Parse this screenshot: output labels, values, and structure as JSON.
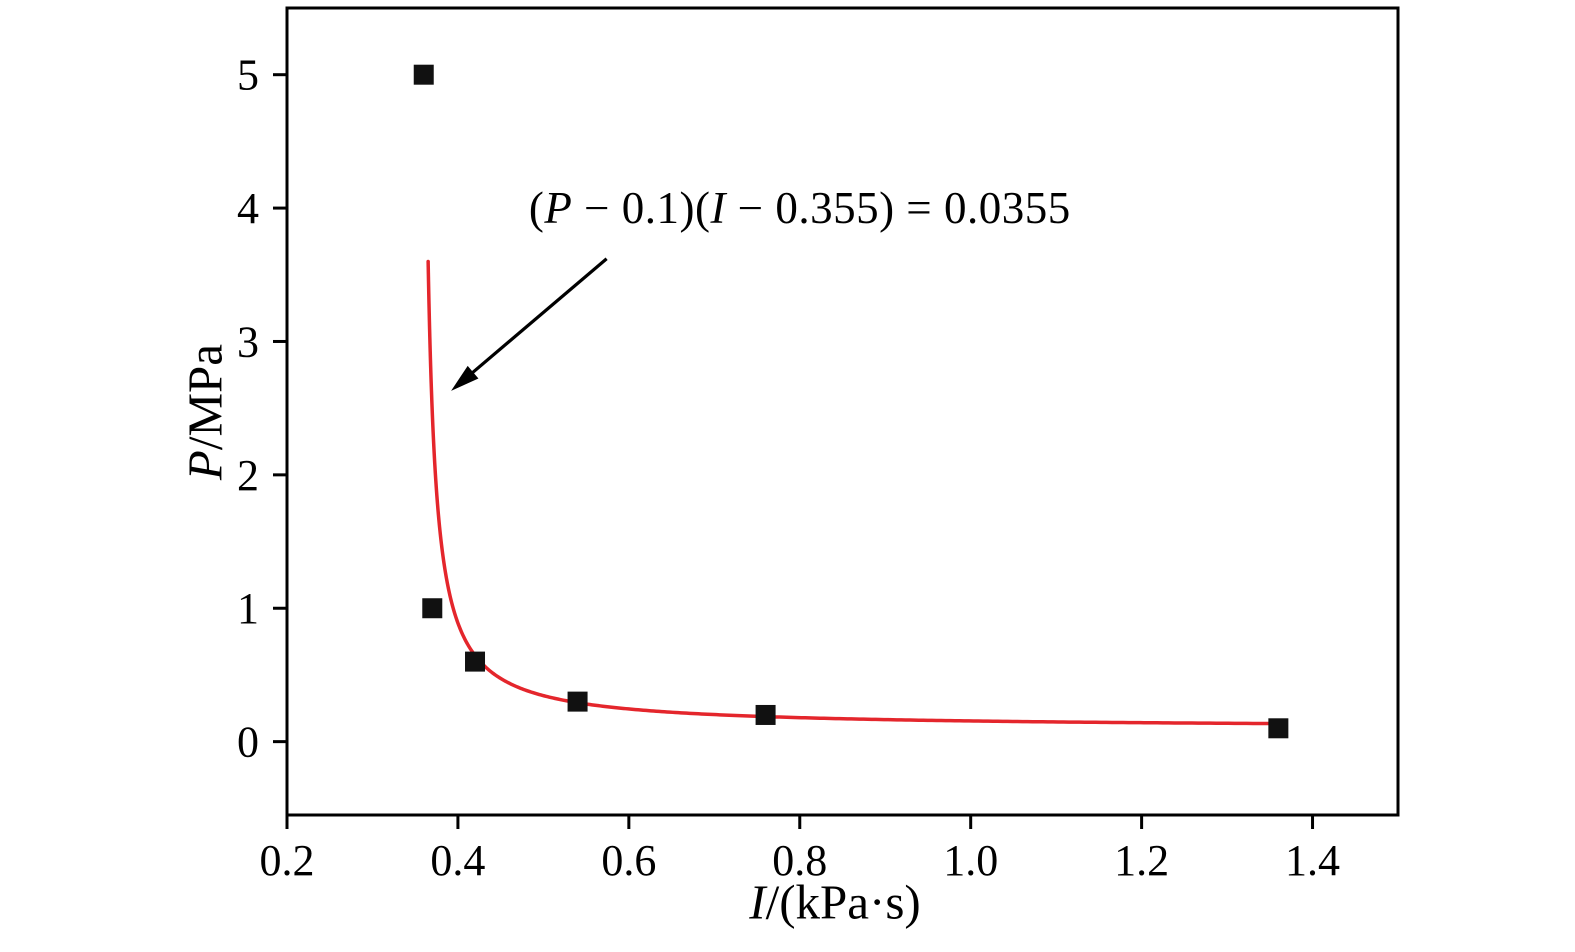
{
  "figure": {
    "background": "#ffffff",
    "frame_color": "#000000"
  },
  "chart_data": {
    "type": "scatter",
    "title": "",
    "xlabel": "I/(kPa·s)",
    "ylabel": "P/MPa",
    "xlabel_parts": [
      {
        "text": "I",
        "italic": true
      },
      {
        "text": "/(kPa·s)",
        "italic": false
      }
    ],
    "ylabel_parts": [
      {
        "text": "P",
        "italic": true
      },
      {
        "text": "/MPa",
        "italic": false
      }
    ],
    "xlim": [
      0.2,
      1.5
    ],
    "ylim": [
      -0.55,
      5.5
    ],
    "x_ticks": [
      0.2,
      0.4,
      0.6,
      0.8,
      1.0,
      1.2,
      1.4
    ],
    "x_tick_labels": [
      "0.2",
      "0.4",
      "0.6",
      "0.8",
      "1.0",
      "1.2",
      "1.4"
    ],
    "y_ticks": [
      0,
      1,
      2,
      3,
      4,
      5
    ],
    "y_tick_labels": [
      "0",
      "1",
      "2",
      "3",
      "4",
      "5"
    ],
    "grid": false,
    "legend": false,
    "frame_color": "#000000",
    "series": [
      {
        "name": "measured data points",
        "kind": "scatter",
        "marker": "square",
        "color": "#111111",
        "points": [
          {
            "x": 0.36,
            "y": 5.0
          },
          {
            "x": 0.37,
            "y": 1.0
          },
          {
            "x": 0.42,
            "y": 0.6
          },
          {
            "x": 0.54,
            "y": 0.3
          },
          {
            "x": 0.76,
            "y": 0.2
          },
          {
            "x": 1.36,
            "y": 0.1
          }
        ]
      },
      {
        "name": "hyperbolic fit curve",
        "kind": "curve",
        "color": "#e4262c",
        "equation": "(P − 0.1)(I − 0.355) = 0.0355",
        "function": "P = 0.1 + 0.0355/(I − 0.355)",
        "params": {
          "p0": 0.1,
          "a": 0.0355,
          "i0": 0.355
        },
        "draw": {
          "p_top": 3.6,
          "i_end": 1.36
        }
      }
    ],
    "annotation": {
      "full_text": "(P − 0.1)(I − 0.355) = 0.0355",
      "parts": [
        {
          "text": "(",
          "italic": false
        },
        {
          "text": "P",
          "italic": true
        },
        {
          "text": " − 0.1)(",
          "italic": false
        },
        {
          "text": "I",
          "italic": true
        },
        {
          "text": " − 0.355) = 0.0355",
          "italic": false
        }
      ],
      "anchor": [
        0.8,
        4.0
      ],
      "arrow": {
        "color": "#000000",
        "from": [
          0.574,
          3.62
        ],
        "to": [
          0.392,
          2.63
        ]
      }
    }
  }
}
